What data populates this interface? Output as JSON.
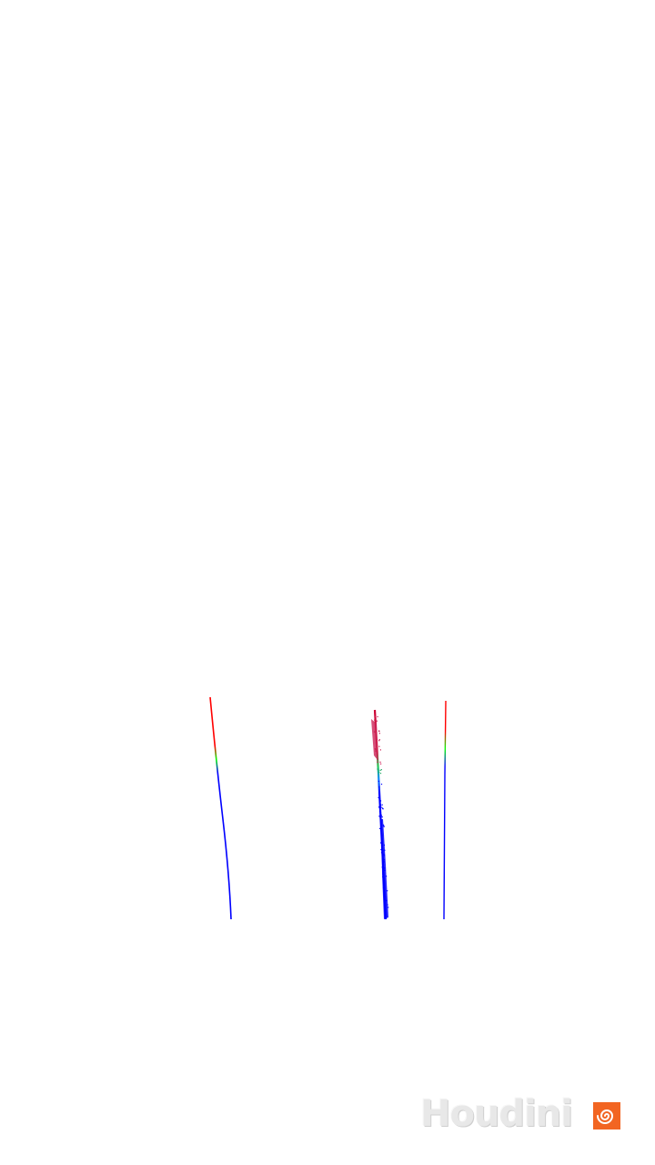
{
  "scene": {
    "background": "#ffffff",
    "strand_gradient": [
      "#ff0000",
      "#00ff00",
      "#0000ff"
    ]
  },
  "watermark": {
    "text": "Houdini",
    "icon": "houdini-swirl-icon",
    "text_color": "#e6e6e6",
    "icon_color": "#f26522"
  }
}
